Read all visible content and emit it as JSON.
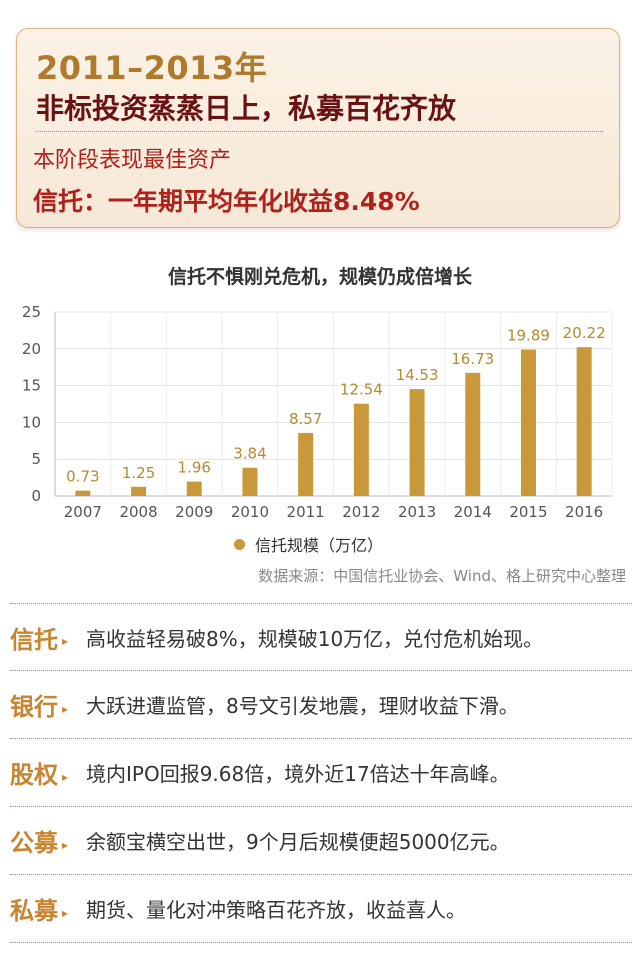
{
  "header": {
    "years": "2011–2013年",
    "headline": "非标投资蒸蒸日上，私募百花齐放",
    "subtitle": "本阶段表现最佳资产",
    "best_asset": "信托：一年期平均年化收益8.48%"
  },
  "chart_data": {
    "type": "bar",
    "title": "信托不惧刚兑危机，规模仍成倍增长",
    "categories": [
      "2007",
      "2008",
      "2009",
      "2010",
      "2011",
      "2012",
      "2013",
      "2014",
      "2015",
      "2016"
    ],
    "series": [
      {
        "name": "信托规模（万亿）",
        "values": [
          0.73,
          1.25,
          1.96,
          3.84,
          8.57,
          12.54,
          14.53,
          16.73,
          19.89,
          20.22
        ]
      }
    ],
    "data_labels": [
      "0.73",
      "1.25",
      "1.96",
      "3.84",
      "8.57",
      "12.54",
      "14.53",
      "16.73",
      "19.89",
      "20.22"
    ],
    "ylim": [
      0,
      25
    ],
    "yticks": [
      0,
      5,
      10,
      15,
      20,
      25
    ],
    "ytick_labels": [
      "0",
      "5",
      "10",
      "15",
      "20",
      "25"
    ],
    "grid": true,
    "legend": "bottom",
    "bar_color": "#c9983b",
    "label_color": "#b8892f"
  },
  "source": "数据来源：中国信托业协会、Wind、格上研究中心整理",
  "arrow_glyph": "▸",
  "facts": [
    {
      "label": "信托",
      "text": "高收益轻易破8%，规模破10万亿，兑付危机始现。"
    },
    {
      "label": "银行",
      "text": "大跃进遭监管，8号文引发地震，理财收益下滑。"
    },
    {
      "label": "股权",
      "text": "境内IPO回报9.68倍，境外近17倍达十年高峰。"
    },
    {
      "label": "公募",
      "text": "余额宝横空出世，9个月后规模便超5000亿元。"
    },
    {
      "label": "私募",
      "text": "期货、量化对冲策略百花齐放，收益喜人。"
    }
  ]
}
